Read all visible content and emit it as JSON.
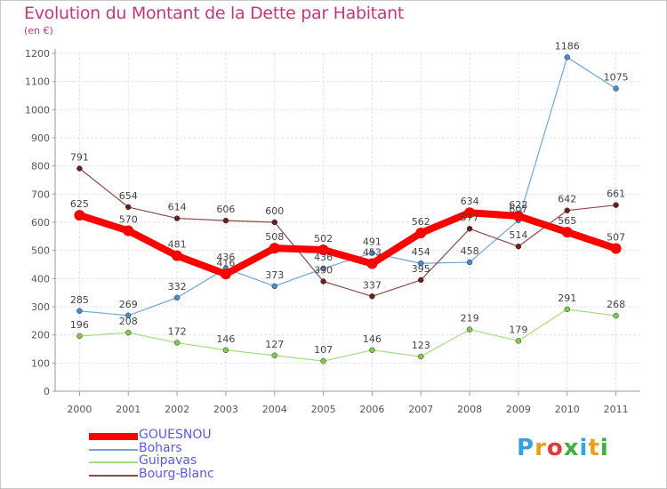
{
  "title": "Evolution du Montant de la Dette par Habitant",
  "unit_label": "(en €)",
  "logo": {
    "letters": [
      "P",
      "r",
      "o",
      "x",
      "i",
      "t",
      "i"
    ],
    "colors": [
      "#3aa0e0",
      "#e8a020",
      "#e03a3a",
      "#40b040",
      "#3aa0e0",
      "#e8a020",
      "#40b040"
    ]
  },
  "chart_data": {
    "type": "line",
    "title": "Evolution du Montant de la Dette par Habitant",
    "ylabel": "(en €)",
    "xlabel": "",
    "x": [
      "2000",
      "2001",
      "2002",
      "2003",
      "2004",
      "2005",
      "2006",
      "2007",
      "2008",
      "2009",
      "2010",
      "2011"
    ],
    "ylim": [
      0,
      1200
    ],
    "yticks": [
      0,
      100,
      200,
      300,
      400,
      500,
      600,
      700,
      800,
      900,
      1000,
      1100,
      1200
    ],
    "grid": true,
    "legend_position": "bottom-left",
    "series": [
      {
        "name": "Bohars",
        "color": "#6fa6d6",
        "marker": "#4a8acb",
        "width": 1.2,
        "values": [
          285,
          269,
          332,
          436,
          373,
          436,
          491,
          454,
          458,
          607,
          1186,
          1075
        ]
      },
      {
        "name": "Guipavas",
        "color": "#a8dc82",
        "marker": "#7fc94e",
        "width": 1.2,
        "values": [
          196,
          208,
          172,
          146,
          127,
          107,
          146,
          123,
          219,
          179,
          291,
          268
        ]
      },
      {
        "name": "Bourg-Blanc",
        "color": "#8a4a4a",
        "marker": "#6b1e1e",
        "width": 1.2,
        "values": [
          791,
          654,
          614,
          606,
          600,
          390,
          337,
          395,
          577,
          514,
          642,
          661
        ]
      },
      {
        "name": "GOUESNOU",
        "color": "#ff0000",
        "marker": "#ff0000",
        "width": 8,
        "values": [
          625,
          570,
          481,
          416,
          508,
          502,
          453,
          562,
          634,
          622,
          565,
          507
        ]
      }
    ],
    "legend_order": [
      "GOUESNOU",
      "Bohars",
      "Guipavas",
      "Bourg-Blanc"
    ]
  }
}
